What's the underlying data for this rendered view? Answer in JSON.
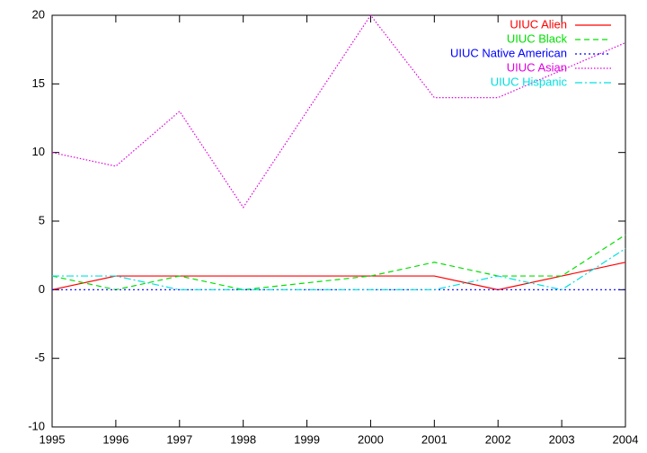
{
  "chart_data": {
    "type": "line",
    "x": [
      1995,
      1996,
      1997,
      1998,
      2000,
      2001,
      2002,
      2003,
      2004
    ],
    "series": [
      {
        "name": "UIUC Alien",
        "color": "#ff0000",
        "values": [
          0,
          1,
          1,
          1,
          1,
          1,
          0,
          1,
          2
        ]
      },
      {
        "name": "UIUC Black",
        "color": "#00e000",
        "values": [
          1,
          0,
          1,
          0,
          1,
          2,
          1,
          1,
          4
        ]
      },
      {
        "name": "UIUC Native American",
        "color": "#0000ff",
        "values": [
          0,
          0,
          0,
          0,
          0,
          0,
          0,
          0,
          0
        ]
      },
      {
        "name": "UIUC Asian",
        "color": "#e000e0",
        "values": [
          10,
          9,
          13,
          6,
          20,
          14,
          14,
          16,
          18
        ]
      },
      {
        "name": "UIUC Hispanic",
        "color": "#00e0e0",
        "values": [
          1,
          1,
          0,
          0,
          0,
          0,
          1,
          0,
          3
        ]
      }
    ],
    "xlim": [
      1995,
      2004
    ],
    "xticks": [
      1995,
      1996,
      1997,
      1998,
      1999,
      2000,
      2001,
      2002,
      2003,
      2004
    ],
    "ylim": [
      -10,
      20
    ],
    "yticks": [
      -10,
      -5,
      0,
      5,
      10,
      15,
      20
    ],
    "legend": "top-right"
  }
}
